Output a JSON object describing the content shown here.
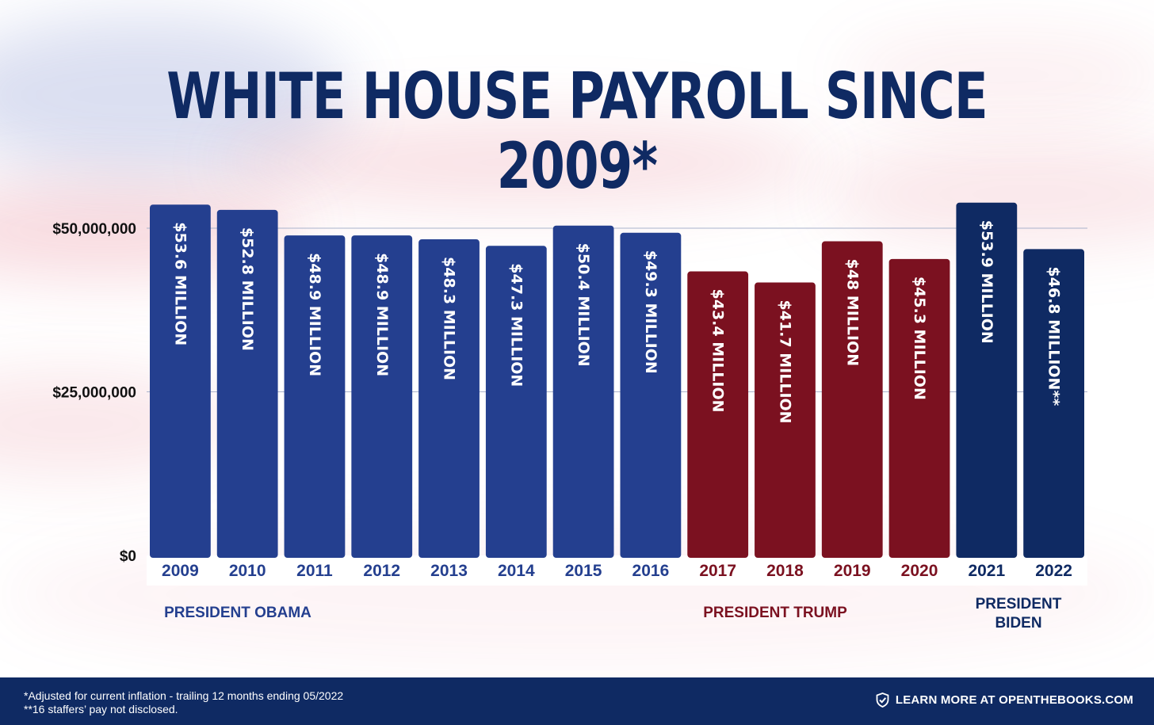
{
  "title": "WHITE HOUSE PAYROLL SINCE 2009*",
  "colors": {
    "obama": "#243f8f",
    "trump": "#7b1120",
    "biden": "#0f2a63",
    "title": "#0f2a63",
    "footer_bg": "#0f2a63"
  },
  "presidents": [
    {
      "label_lines": [
        "PRESIDENT OBAMA"
      ],
      "color": "#243f8f"
    },
    {
      "label_lines": [
        "PRESIDENT TRUMP"
      ],
      "color": "#7b1120"
    },
    {
      "label_lines": [
        "PRESIDENT",
        "BIDEN"
      ],
      "color": "#0f2a63"
    }
  ],
  "chart_data": {
    "type": "bar",
    "title": "WHITE HOUSE PAYROLL SINCE 2009*",
    "categories": [
      "2009",
      "2010",
      "2011",
      "2012",
      "2013",
      "2014",
      "2015",
      "2016",
      "2017",
      "2018",
      "2019",
      "2020",
      "2021",
      "2022"
    ],
    "values": [
      53.6,
      52.8,
      48.9,
      48.9,
      48.3,
      47.3,
      50.4,
      49.3,
      43.4,
      41.7,
      48,
      45.3,
      53.9,
      46.8
    ],
    "value_unit": "million dollars",
    "labels": [
      "$53.6 MILLION",
      "$52.8 MILLION",
      "$48.9 MILLION",
      "$48.9 MILLION",
      "$48.3 MILLION",
      "$47.3 MILLION",
      "$50.4 MILLION",
      "$49.3 MILLION",
      "$43.4 MILLION",
      "$41.7 MILLION",
      "$48 MILLION",
      "$45.3 MILLION",
      "$53.9 MILLION",
      "$46.8 MILLION**"
    ],
    "bar_colors": [
      "#243f8f",
      "#243f8f",
      "#243f8f",
      "#243f8f",
      "#243f8f",
      "#243f8f",
      "#243f8f",
      "#243f8f",
      "#7b1120",
      "#7b1120",
      "#7b1120",
      "#7b1120",
      "#0f2a63",
      "#0f2a63"
    ],
    "y_ticks": [
      {
        "value": 0,
        "label": "$0"
      },
      {
        "value": 25,
        "label": "$25,000,000"
      },
      {
        "value": 50,
        "label": "$50,000,000"
      }
    ],
    "ylim": [
      0,
      50
    ],
    "grid": true,
    "xlabel": "",
    "ylabel": ""
  },
  "footer": {
    "note1": "*Adjusted for current inflation - trailing 12 months ending 05/2022",
    "note2": "**16 staffers’ pay not disclosed.",
    "cta": "LEARN MORE AT OPENTHEBOOKS.COM",
    "cta_icon": "shield-check-icon"
  }
}
